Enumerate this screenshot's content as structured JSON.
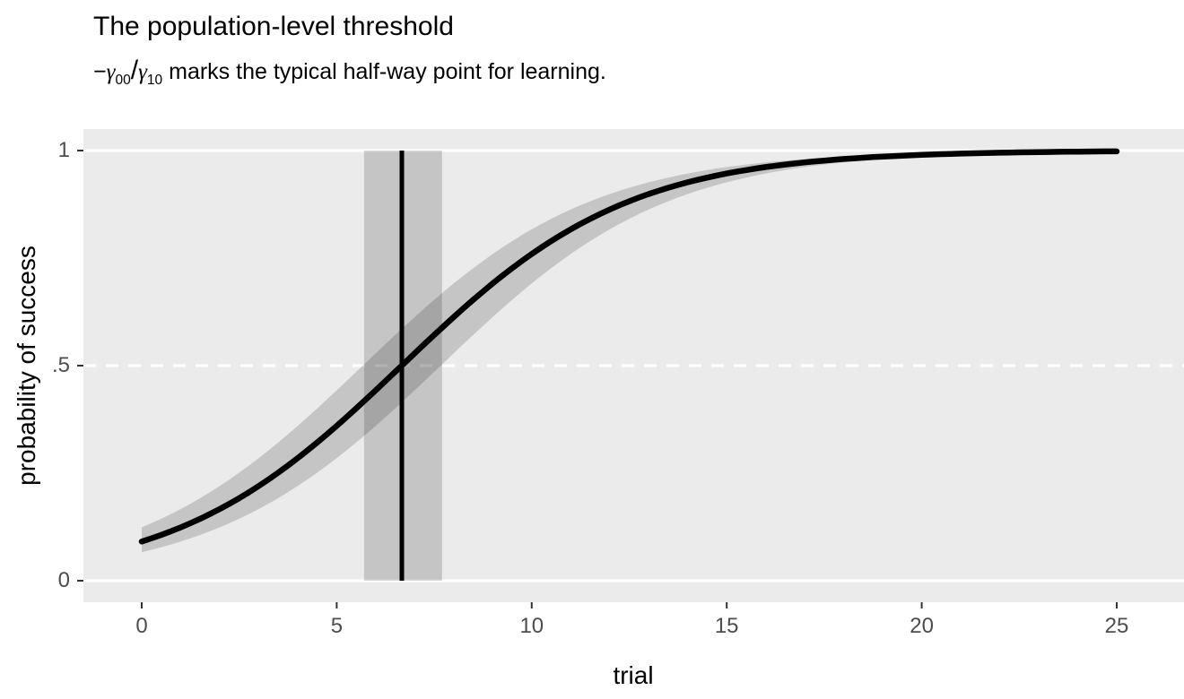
{
  "title": "The population-level threshold",
  "subtitle": {
    "prefix": "−",
    "gamma1": "γ",
    "sub1": "00",
    "slash": "/",
    "gamma2": "γ",
    "sub2": "10",
    "rest": " marks the typical half-way point for learning."
  },
  "axes": {
    "x": {
      "label": "trial",
      "ticks": [
        {
          "value": 0,
          "label": "0"
        },
        {
          "value": 5,
          "label": "5"
        },
        {
          "value": 10,
          "label": "10"
        },
        {
          "value": 15,
          "label": "15"
        },
        {
          "value": 20,
          "label": "20"
        },
        {
          "value": 25,
          "label": "25"
        }
      ]
    },
    "y": {
      "label": "probability of success",
      "ticks": [
        {
          "value": 0,
          "label": "0"
        },
        {
          "value": 0.5,
          "label": ".5"
        },
        {
          "value": 1,
          "label": "1"
        }
      ]
    }
  },
  "chart_data": {
    "type": "line",
    "model": "logistic: p = 1 / (1 + exp(-(gamma00 + gamma10 * trial)))",
    "gamma00": -2.3,
    "gamma10": 0.345,
    "threshold": 6.67,
    "threshold_ci": [
      5.7,
      7.7
    ],
    "ribbon_intercept_halfwidth": 0.345,
    "reference_line_y": 0.5,
    "x_range": [
      0,
      25
    ],
    "xlim": [
      -1.25,
      26.25
    ],
    "ylim": [
      -0.05,
      1.05
    ],
    "grid": {
      "solid_hlines": [
        0,
        1
      ],
      "dashed_hlines": [
        0.5
      ],
      "vertical_gridlines": false
    },
    "legend": "none",
    "sampled_points": {
      "x": [
        0,
        1,
        2,
        3,
        4,
        5,
        6,
        7,
        8,
        9,
        10,
        11,
        12,
        13,
        14,
        15,
        16,
        17,
        18,
        19,
        20,
        21,
        22,
        23,
        24,
        25
      ],
      "y": [
        0.091,
        0.124,
        0.167,
        0.22,
        0.285,
        0.36,
        0.443,
        0.529,
        0.613,
        0.691,
        0.76,
        0.817,
        0.863,
        0.899,
        0.926,
        0.947,
        0.962,
        0.972,
        0.98,
        0.986,
        0.99,
        0.993,
        0.995,
        0.996,
        0.997,
        0.998
      ],
      "y_lower": [
        0.066,
        0.091,
        0.124,
        0.167,
        0.22,
        0.285,
        0.36,
        0.443,
        0.529,
        0.613,
        0.691,
        0.76,
        0.817,
        0.863,
        0.899,
        0.926,
        0.947,
        0.962,
        0.972,
        0.98,
        0.986,
        0.99,
        0.993,
        0.995,
        0.996,
        0.997
      ],
      "y_upper": [
        0.124,
        0.167,
        0.22,
        0.285,
        0.36,
        0.443,
        0.529,
        0.613,
        0.691,
        0.76,
        0.817,
        0.863,
        0.899,
        0.926,
        0.947,
        0.962,
        0.972,
        0.98,
        0.986,
        0.99,
        0.993,
        0.995,
        0.996,
        0.997,
        0.998,
        0.999
      ]
    },
    "colors": {
      "panel": "#EBEBEB",
      "gridline": "#FFFFFF",
      "curve": "#000000",
      "ribbon": "rgba(0,0,0,0.16)",
      "ci_band": "rgba(0,0,0,0.16)",
      "threshold_line": "#000000",
      "tick_text": "#4D4D4D",
      "tick_mark": "#333333"
    }
  }
}
